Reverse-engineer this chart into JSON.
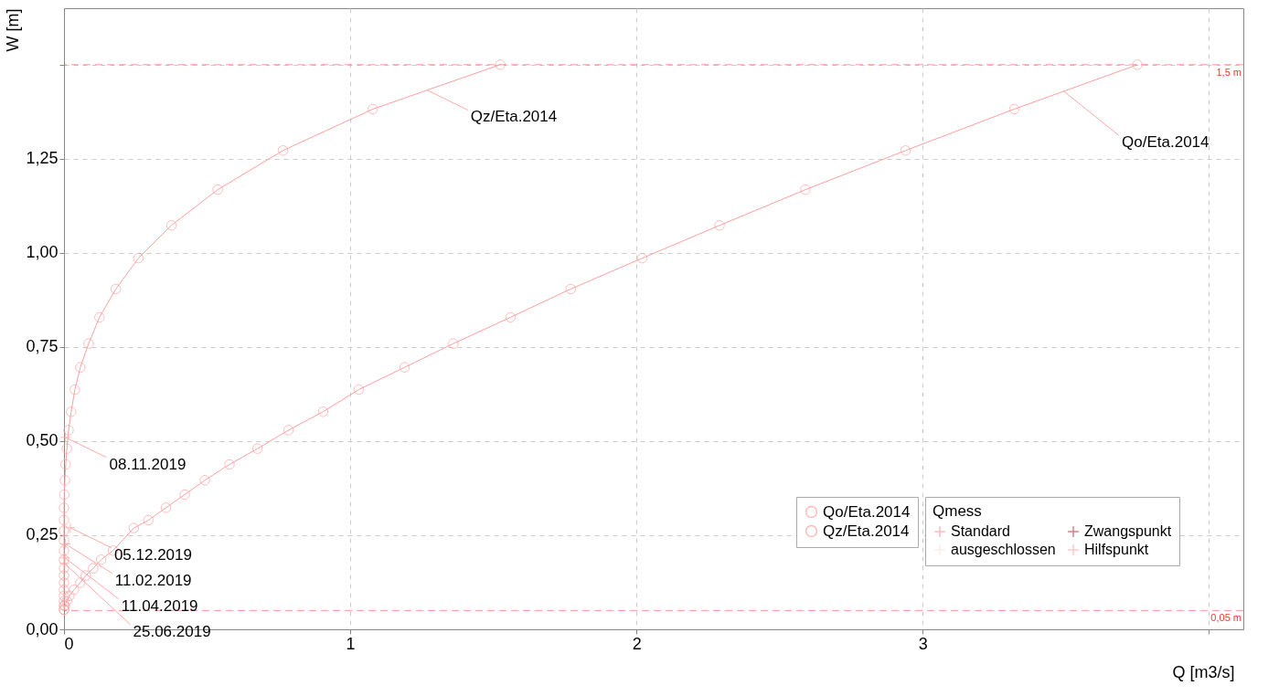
{
  "chart_data": {
    "type": "line",
    "xlabel": "Q [m3/s]",
    "ylabel": "W [m]",
    "legend_title": "Qmess",
    "xlim": [
      0,
      4.12
    ],
    "ylim": [
      0,
      1.65
    ],
    "xticks": [
      0,
      1,
      2,
      3,
      {
        "value": 4,
        "label": null
      }
    ],
    "yticks": [
      {
        "value": 0,
        "label": "0,00"
      },
      {
        "value": 0.25,
        "label": "0,25"
      },
      {
        "value": 0.5,
        "label": "0,50"
      },
      {
        "value": 0.75,
        "label": "0,75"
      },
      {
        "value": 1.0,
        "label": "1,00"
      },
      {
        "value": 1.25,
        "label": "1,25"
      },
      {
        "value": 1.5,
        "label": null
      }
    ],
    "grid": true,
    "legend": "bottom right",
    "marker": "circle",
    "line_style": "solid",
    "series": [
      {
        "name": "Qo/Eta.2014",
        "type": "line",
        "color": "#ff9f9f",
        "x": [
          0,
          0.003,
          0.01,
          0.019,
          0.035,
          0.057,
          0.076,
          0.102,
          0.13,
          0.171,
          0.244,
          0.295,
          0.356,
          0.422,
          0.492,
          0.578,
          0.676,
          0.784,
          0.905,
          1.03,
          1.19,
          1.36,
          1.56,
          1.77,
          2.02,
          2.29,
          2.59,
          2.94,
          3.32,
          3.75
        ],
        "values": [
          0.052,
          0.063,
          0.075,
          0.089,
          0.105,
          0.124,
          0.143,
          0.162,
          0.185,
          0.209,
          0.269,
          0.29,
          0.323,
          0.358,
          0.396,
          0.438,
          0.48,
          0.529,
          0.578,
          0.637,
          0.696,
          0.759,
          0.829,
          0.904,
          0.986,
          1.073,
          1.168,
          1.272,
          1.382,
          1.5
        ]
      },
      {
        "name": "Qz/Eta.2014",
        "type": "line",
        "color": "#ff9f9f",
        "x": [
          0,
          0,
          0,
          0,
          0,
          0,
          0,
          0,
          0,
          0,
          0,
          0,
          0,
          0,
          0.001,
          0.003,
          0.006,
          0.01,
          0.016,
          0.025,
          0.038,
          0.057,
          0.086,
          0.124,
          0.181,
          0.26,
          0.375,
          0.537,
          0.765,
          1.079,
          1.524
        ],
        "values": [
          0.052,
          0.063,
          0.075,
          0.089,
          0.105,
          0.124,
          0.143,
          0.162,
          0.185,
          0.209,
          0.236,
          0.262,
          0.29,
          0.323,
          0.358,
          0.396,
          0.438,
          0.48,
          0.529,
          0.578,
          0.637,
          0.696,
          0.759,
          0.829,
          0.904,
          0.986,
          1.073,
          1.168,
          1.272,
          1.382,
          1.5
        ]
      },
      {
        "name": "Standard",
        "type": "scatter",
        "marker": "cross",
        "color": "#ff9f9f",
        "x": [
          0.005,
          0.022,
          0.005,
          0.003,
          0.002
        ],
        "values": [
          0.51,
          0.27,
          0.227,
          0.19,
          0.175
        ]
      },
      {
        "name": "ausgeschlossen",
        "type": "scatter",
        "marker": "cross",
        "color": "#ffe3e3"
      },
      {
        "name": "Zwangspunkt",
        "type": "scatter",
        "marker": "cross",
        "color": "#c0504d"
      },
      {
        "name": "Hilfspunkt",
        "type": "scatter",
        "marker": "cross",
        "color": "#ffb3b3"
      }
    ],
    "ref_lines": [
      {
        "axis": "y",
        "value": 1.5,
        "label": "1,5 m",
        "color": "#ff3333",
        "line_style": "dashed"
      },
      {
        "axis": "y",
        "value": 0.05,
        "label": "0,05 m",
        "color": "#ff3333",
        "line_style": "dashed"
      }
    ],
    "annotations": [
      {
        "text": "Qz/Eta.2014",
        "x": 1.267,
        "y": 1.433
      },
      {
        "text": "Qo/Eta.2014",
        "x": 3.49,
        "y": 1.431
      },
      {
        "text": "08.11.2019",
        "x": 0.005,
        "y": 0.51
      },
      {
        "text": "05.12.2019",
        "x": 0.022,
        "y": 0.27
      },
      {
        "text": "11.02.2019",
        "x": 0.005,
        "y": 0.227
      },
      {
        "text": "11.04.2019",
        "x": 0.003,
        "y": 0.19
      },
      {
        "text": "25.06.2019",
        "x": 0.002,
        "y": 0.175
      }
    ]
  }
}
